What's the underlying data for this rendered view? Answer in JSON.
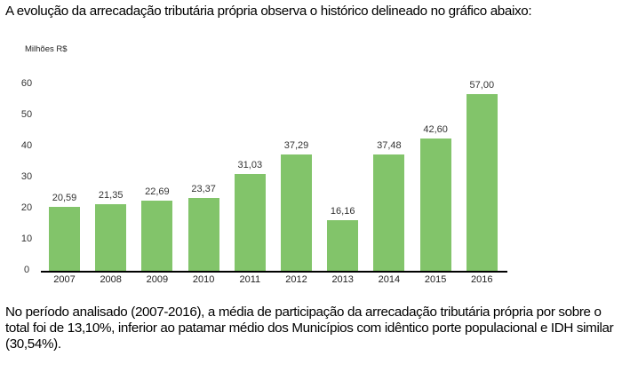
{
  "intro_text": "A evolução da arrecadação tributária própria observa o histórico delineado no gráfico abaixo:",
  "chart_data": {
    "type": "bar",
    "title": "",
    "ylabel": "Milhões R$",
    "xlabel": "",
    "categories": [
      "2007",
      "2008",
      "2009",
      "2010",
      "2011",
      "2012",
      "2013",
      "2014",
      "2015",
      "2016"
    ],
    "values": [
      20.59,
      21.35,
      22.69,
      23.37,
      31.03,
      37.29,
      16.16,
      37.48,
      42.6,
      57.0
    ],
    "value_labels": [
      "20,59",
      "21,35",
      "22,69",
      "23,37",
      "31,03",
      "37,29",
      "16,16",
      "37,48",
      "42,60",
      "57,00"
    ],
    "ylim": [
      0,
      60
    ],
    "yticks": [
      "0",
      "10",
      "20",
      "30",
      "40",
      "50",
      "60"
    ],
    "grid": false,
    "legend": null,
    "bar_color": "#82c46a"
  },
  "paragraph": {
    "lines": [
      "No período analisado (2007-2016), a média de participação da arrecadação tributária própria por sobre o",
      "total foi de 13,10%, inferior ao patamar médio dos Municípios com idêntico porte populacional e IDH similar",
      "(30,54%)."
    ]
  }
}
